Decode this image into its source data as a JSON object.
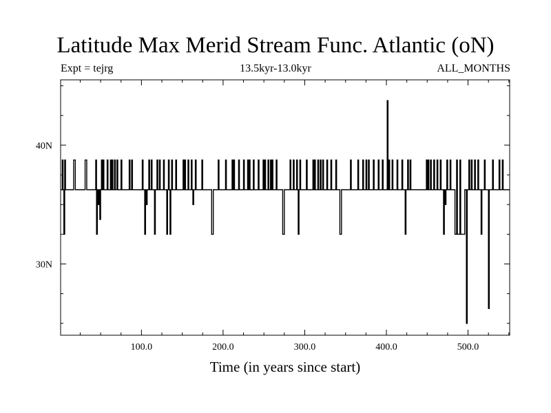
{
  "header": {
    "title": "Latitude Max Merid Stream Func. Atlantic (oN)",
    "expt": "Expt = tejrg",
    "period": "13.5kyr-13.0kyr",
    "months": "ALL_MONTHS"
  },
  "chart_data": {
    "type": "line",
    "title": "Latitude Max Merid Stream Func. Atlantic (oN)",
    "xlabel": "Time (in years since start)",
    "ylabel": "",
    "xlim": [
      1,
      551
    ],
    "ylim": [
      24.0,
      45.5
    ],
    "x_ticks": [
      100,
      200,
      300,
      400,
      500
    ],
    "x_tick_labels": [
      "100.0",
      "200.0",
      "300.0",
      "400.0",
      "500.0"
    ],
    "y_ticks": [
      30,
      40
    ],
    "y_tick_labels": [
      "30N",
      "40N"
    ],
    "grid": false,
    "baseline": 36.25,
    "levels": [
      25.0,
      26.25,
      32.5,
      35.0,
      36.25,
      38.75,
      43.75
    ],
    "events": [
      {
        "x": 3,
        "v": 38.75
      },
      {
        "x": 5,
        "v": 32.5
      },
      {
        "x": 6,
        "v": 38.75
      },
      {
        "x": 17,
        "v": 38.75
      },
      {
        "x": 18,
        "v": 38.75
      },
      {
        "x": 31,
        "v": 38.75
      },
      {
        "x": 32,
        "v": 38.75
      },
      {
        "x": 44,
        "v": 38.75
      },
      {
        "x": 45,
        "v": 32.5
      },
      {
        "x": 47,
        "v": 35.0
      },
      {
        "x": 49,
        "v": 33.75
      },
      {
        "x": 51,
        "v": 38.75
      },
      {
        "x": 53,
        "v": 38.75
      },
      {
        "x": 58,
        "v": 38.75
      },
      {
        "x": 62,
        "v": 38.75
      },
      {
        "x": 64,
        "v": 38.75
      },
      {
        "x": 67,
        "v": 38.75
      },
      {
        "x": 70,
        "v": 38.75
      },
      {
        "x": 75,
        "v": 38.75
      },
      {
        "x": 85,
        "v": 38.75
      },
      {
        "x": 88,
        "v": 38.75
      },
      {
        "x": 101,
        "v": 38.75
      },
      {
        "x": 104,
        "v": 32.5
      },
      {
        "x": 106,
        "v": 35.0
      },
      {
        "x": 109,
        "v": 38.75
      },
      {
        "x": 112,
        "v": 38.75
      },
      {
        "x": 116,
        "v": 32.5
      },
      {
        "x": 119,
        "v": 38.75
      },
      {
        "x": 122,
        "v": 38.75
      },
      {
        "x": 127,
        "v": 38.75
      },
      {
        "x": 131,
        "v": 32.5
      },
      {
        "x": 133,
        "v": 38.75
      },
      {
        "x": 135,
        "v": 32.5
      },
      {
        "x": 137,
        "v": 38.75
      },
      {
        "x": 142,
        "v": 38.75
      },
      {
        "x": 151,
        "v": 38.75
      },
      {
        "x": 153,
        "v": 38.75
      },
      {
        "x": 157,
        "v": 38.75
      },
      {
        "x": 161,
        "v": 38.75
      },
      {
        "x": 163,
        "v": 35.0
      },
      {
        "x": 166,
        "v": 38.75
      },
      {
        "x": 174,
        "v": 38.75
      },
      {
        "x": 186,
        "v": 32.5
      },
      {
        "x": 187,
        "v": 32.5
      },
      {
        "x": 194,
        "v": 38.75
      },
      {
        "x": 203,
        "v": 38.75
      },
      {
        "x": 211,
        "v": 38.75
      },
      {
        "x": 213,
        "v": 38.75
      },
      {
        "x": 219,
        "v": 38.75
      },
      {
        "x": 225,
        "v": 38.75
      },
      {
        "x": 230,
        "v": 38.75
      },
      {
        "x": 232,
        "v": 38.75
      },
      {
        "x": 237,
        "v": 38.75
      },
      {
        "x": 243,
        "v": 38.75
      },
      {
        "x": 249,
        "v": 38.75
      },
      {
        "x": 251,
        "v": 38.75
      },
      {
        "x": 255,
        "v": 38.75
      },
      {
        "x": 258,
        "v": 38.75
      },
      {
        "x": 260,
        "v": 38.75
      },
      {
        "x": 265,
        "v": 38.75
      },
      {
        "x": 273,
        "v": 32.5
      },
      {
        "x": 274,
        "v": 32.5
      },
      {
        "x": 282,
        "v": 38.75
      },
      {
        "x": 286,
        "v": 38.75
      },
      {
        "x": 290,
        "v": 38.75
      },
      {
        "x": 292,
        "v": 32.5
      },
      {
        "x": 294,
        "v": 38.75
      },
      {
        "x": 302,
        "v": 38.75
      },
      {
        "x": 310,
        "v": 38.75
      },
      {
        "x": 312,
        "v": 38.75
      },
      {
        "x": 316,
        "v": 38.75
      },
      {
        "x": 319,
        "v": 38.75
      },
      {
        "x": 322,
        "v": 38.75
      },
      {
        "x": 327,
        "v": 38.75
      },
      {
        "x": 332,
        "v": 38.75
      },
      {
        "x": 338,
        "v": 38.75
      },
      {
        "x": 343,
        "v": 32.5
      },
      {
        "x": 344,
        "v": 32.5
      },
      {
        "x": 356,
        "v": 38.75
      },
      {
        "x": 365,
        "v": 38.75
      },
      {
        "x": 371,
        "v": 38.75
      },
      {
        "x": 375,
        "v": 38.75
      },
      {
        "x": 378,
        "v": 38.75
      },
      {
        "x": 384,
        "v": 38.75
      },
      {
        "x": 390,
        "v": 38.75
      },
      {
        "x": 395,
        "v": 38.75
      },
      {
        "x": 401,
        "v": 43.75
      },
      {
        "x": 403,
        "v": 38.75
      },
      {
        "x": 407,
        "v": 38.75
      },
      {
        "x": 413,
        "v": 38.75
      },
      {
        "x": 419,
        "v": 38.75
      },
      {
        "x": 423,
        "v": 32.5
      },
      {
        "x": 426,
        "v": 38.75
      },
      {
        "x": 429,
        "v": 38.75
      },
      {
        "x": 449,
        "v": 38.75
      },
      {
        "x": 451,
        "v": 38.75
      },
      {
        "x": 454,
        "v": 38.75
      },
      {
        "x": 458,
        "v": 38.75
      },
      {
        "x": 462,
        "v": 38.75
      },
      {
        "x": 466,
        "v": 38.75
      },
      {
        "x": 470,
        "v": 32.5
      },
      {
        "x": 472,
        "v": 35.0
      },
      {
        "x": 474,
        "v": 38.75
      },
      {
        "x": 478,
        "v": 38.75
      },
      {
        "x": 486,
        "v": 38.75
      },
      {
        "x": 490,
        "v": 38.75
      },
      {
        "x": 494,
        "v": 32.5
      },
      {
        "x": 498,
        "v": 25.0
      },
      {
        "x": 501,
        "v": 38.75
      },
      {
        "x": 504,
        "v": 38.75
      },
      {
        "x": 508,
        "v": 38.75
      },
      {
        "x": 512,
        "v": 38.75
      },
      {
        "x": 516,
        "v": 32.5
      },
      {
        "x": 520,
        "v": 38.75
      },
      {
        "x": 525,
        "v": 26.25
      },
      {
        "x": 530,
        "v": 38.75
      },
      {
        "x": 538,
        "v": 38.75
      },
      {
        "x": 542,
        "v": 38.75
      }
    ],
    "segments": [
      {
        "x0": 484,
        "x1": 496,
        "v": 32.5
      }
    ]
  }
}
